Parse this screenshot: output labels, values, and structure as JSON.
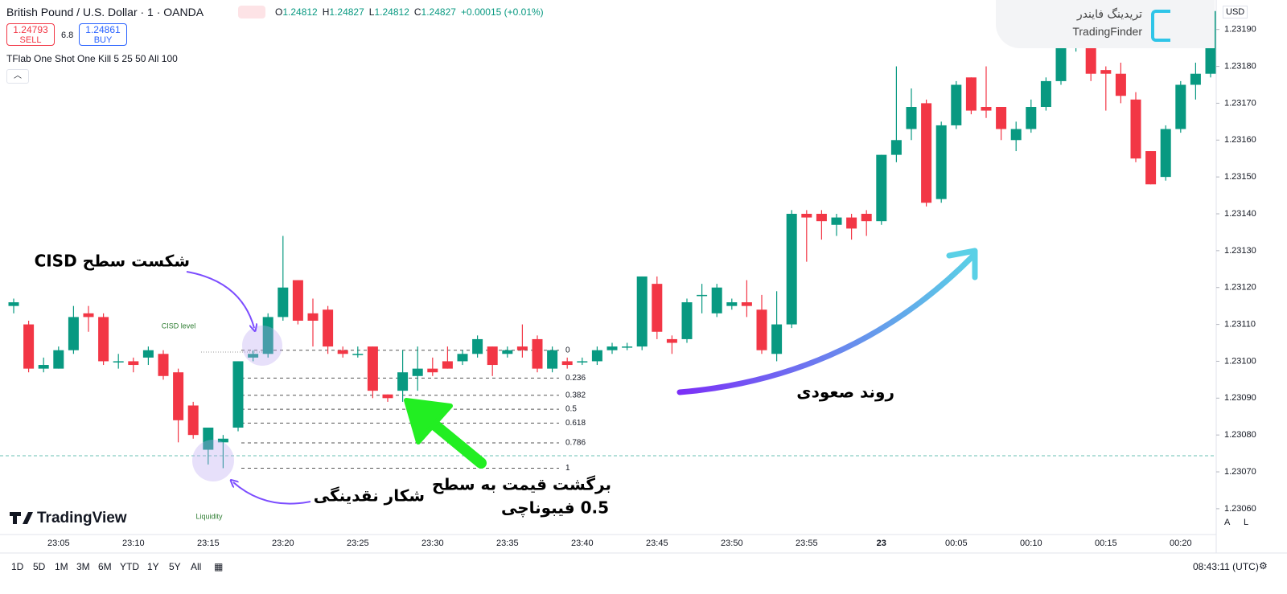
{
  "header": {
    "symbol": "British Pound / U.S. Dollar · 1 · OANDA",
    "ohlc": [
      {
        "label": "O",
        "value": "1.24812"
      },
      {
        "label": "H",
        "value": "1.24827"
      },
      {
        "label": "L",
        "value": "1.24812"
      },
      {
        "label": "C",
        "value": "1.24827"
      }
    ],
    "change": "+0.00015 (+0.01%)",
    "sell_price": "1.24793",
    "sell": "SELL",
    "spread": "6.8",
    "buy_price": "1.24861",
    "buy": "BUY",
    "indicator": "TFlab One Shot One Kill 5 25 50 All 100",
    "currency": "USD"
  },
  "logos": {
    "tradingview": "TradingView",
    "tradingfinder": "TradingFinder",
    "tradingfinder_fa": "تریدینگ فایندر"
  },
  "chart_data": {
    "type": "candlestick",
    "up_color": "#089981",
    "down_color": "#f23645",
    "categories": [
      null,
      null,
      null,
      "23:05",
      null,
      null,
      null,
      null,
      "23:10",
      null,
      null,
      null,
      null,
      "23:15",
      null,
      null,
      null,
      null,
      "23:20",
      null,
      null,
      null,
      null,
      "23:25",
      null,
      null,
      null,
      null,
      "23:30",
      null,
      null,
      null,
      null,
      "23:35",
      null,
      null,
      null,
      null,
      "23:40",
      null,
      null,
      null,
      null,
      "23:45",
      null,
      null,
      null,
      null,
      "23:50",
      null,
      null,
      null,
      null,
      "23:55",
      null,
      null,
      null,
      null,
      "23",
      null,
      null,
      null,
      null,
      "00:05",
      null,
      null,
      null,
      null,
      "00:10",
      null,
      null,
      null,
      null,
      "00:15",
      null,
      null,
      null,
      null,
      "00:20",
      null,
      null
    ],
    "open": [
      1.23115,
      1.2311,
      1.23098,
      1.23098,
      1.23103,
      1.23113,
      1.23112,
      1.231,
      1.231,
      1.23101,
      1.23102,
      1.23097,
      1.23088,
      1.23076,
      1.23078,
      1.23082,
      1.23101,
      1.23102,
      1.23112,
      1.23122,
      1.23113,
      1.23114,
      1.23103,
      1.23102,
      1.23104,
      1.23091,
      1.23092,
      1.23096,
      1.23098,
      1.231,
      1.231,
      1.23102,
      1.23104,
      1.23102,
      1.23104,
      1.23106,
      1.23098,
      1.231,
      1.231,
      1.231,
      1.23103,
      1.23104,
      1.23104,
      1.23121,
      1.23106,
      1.23106,
      1.23118,
      1.23113,
      1.23115,
      1.23116,
      1.23114,
      1.23102,
      1.2311,
      1.2314,
      1.2314,
      1.23137,
      1.23139,
      1.2314,
      1.23138,
      1.23156,
      1.23163,
      1.2317,
      1.23144,
      1.23164,
      1.23177,
      1.23169,
      1.23169,
      1.2316,
      1.23163,
      1.23169,
      1.23176,
      1.23186,
      1.23186,
      1.23179,
      1.23178,
      1.23171,
      1.23157,
      1.2315,
      1.23163,
      1.23175,
      1.23178
    ],
    "high": [
      1.23117,
      1.23111,
      1.23101,
      1.23104,
      1.23115,
      1.23115,
      1.23113,
      1.23102,
      1.23101,
      1.23104,
      1.23103,
      1.23098,
      1.23089,
      1.23082,
      1.2308,
      1.231,
      1.23103,
      1.23113,
      1.23134,
      1.23122,
      1.23117,
      1.23115,
      1.23104,
      1.23104,
      1.23104,
      1.23091,
      1.23103,
      1.23104,
      1.23101,
      1.23104,
      1.23103,
      1.23107,
      1.23104,
      1.23104,
      1.2311,
      1.23107,
      1.23104,
      1.23101,
      1.23101,
      1.23104,
      1.23105,
      1.23105,
      1.23123,
      1.23123,
      1.23107,
      1.23117,
      1.23121,
      1.23121,
      1.23117,
      1.23122,
      1.23118,
      1.23119,
      1.23141,
      1.23141,
      1.23141,
      1.2314,
      1.2314,
      1.23141,
      1.23156,
      1.2318,
      1.23174,
      1.23171,
      1.23165,
      1.23176,
      1.23177,
      1.2318,
      1.23169,
      1.23165,
      1.23171,
      1.23177,
      1.2319,
      1.23189,
      1.23188,
      1.2318,
      1.23181,
      1.23173,
      1.23157,
      1.23164,
      1.23176,
      1.23181,
      1.23196
    ],
    "low": [
      1.23113,
      1.23097,
      1.23097,
      1.23098,
      1.23102,
      1.23108,
      1.23099,
      1.23098,
      1.23097,
      1.23099,
      1.23095,
      1.23078,
      1.23079,
      1.23072,
      1.23071,
      1.23081,
      1.231,
      1.23101,
      1.23111,
      1.2311,
      1.23104,
      1.23102,
      1.23101,
      1.23101,
      1.2309,
      1.23089,
      1.23089,
      1.23092,
      1.23096,
      1.23098,
      1.23099,
      1.23101,
      1.23096,
      1.23101,
      1.23101,
      1.23097,
      1.23097,
      1.23098,
      1.23099,
      1.23099,
      1.23102,
      1.23103,
      1.23103,
      1.23106,
      1.23102,
      1.23105,
      1.23113,
      1.23112,
      1.23114,
      1.23112,
      1.23102,
      1.231,
      1.23109,
      1.23127,
      1.23133,
      1.23134,
      1.23133,
      1.23134,
      1.23137,
      1.23154,
      1.2316,
      1.23142,
      1.23143,
      1.23163,
      1.23167,
      1.23166,
      1.2316,
      1.23157,
      1.23162,
      1.23168,
      1.23175,
      1.23184,
      1.23176,
      1.23168,
      1.2317,
      1.23154,
      1.23148,
      1.23149,
      1.23162,
      1.23171,
      1.23177
    ],
    "close": [
      1.23116,
      1.23098,
      1.23099,
      1.23103,
      1.23112,
      1.23112,
      1.231,
      1.231,
      1.23099,
      1.23103,
      1.23096,
      1.23084,
      1.2308,
      1.23082,
      1.23079,
      1.231,
      1.23102,
      1.23112,
      1.2312,
      1.23111,
      1.23111,
      1.23104,
      1.23102,
      1.23102,
      1.23092,
      1.2309,
      1.23097,
      1.23098,
      1.23097,
      1.23098,
      1.23102,
      1.23106,
      1.23099,
      1.23103,
      1.23103,
      1.23098,
      1.23103,
      1.23099,
      1.231,
      1.23103,
      1.23104,
      1.23104,
      1.23123,
      1.23108,
      1.23105,
      1.23116,
      1.23118,
      1.2312,
      1.23116,
      1.23115,
      1.23103,
      1.2311,
      1.2314,
      1.23139,
      1.23138,
      1.23139,
      1.23136,
      1.23138,
      1.23156,
      1.2316,
      1.23169,
      1.23143,
      1.23164,
      1.23175,
      1.23168,
      1.23168,
      1.23163,
      1.23163,
      1.23169,
      1.23176,
      1.23186,
      1.23186,
      1.23178,
      1.23178,
      1.23172,
      1.23155,
      1.23148,
      1.23163,
      1.23175,
      1.23178,
      1.23195
    ],
    "ylim": [
      1.23053,
      1.23198
    ],
    "yticks": [
      {
        "value": 1.2306,
        "label": "1.23060"
      },
      {
        "value": 1.2307,
        "label": "1.23070"
      },
      {
        "value": 1.2308,
        "label": "1.23080"
      },
      {
        "value": 1.2309,
        "label": "1.23090"
      },
      {
        "value": 1.231,
        "label": "1.23100"
      },
      {
        "value": 1.2311,
        "label": "1.23110"
      },
      {
        "value": 1.2312,
        "label": "1.23120"
      },
      {
        "value": 1.2313,
        "label": "1.23130"
      },
      {
        "value": 1.2314,
        "label": "1.23140"
      },
      {
        "value": 1.2315,
        "label": "1.23150"
      },
      {
        "value": 1.2316,
        "label": "1.23160"
      },
      {
        "value": 1.2317,
        "label": "1.23170"
      },
      {
        "value": 1.2318,
        "label": "1.23180"
      },
      {
        "value": 1.2319,
        "label": "1.23190"
      }
    ],
    "fib_levels": [
      0,
      0.236,
      0.382,
      0.5,
      0.618,
      0.786,
      1
    ],
    "cisd_label": "CISD level",
    "liquidity_label": "Liquidity"
  },
  "annotations": {
    "cisd_break": "شکست سطح CISD",
    "liquidity_hunt": "شکار نقدینگی",
    "retrace_1": "برگشت قیمت به سطح",
    "retrace_2": "0.5 فیبوناچی",
    "uptrend": "روند صعودی"
  },
  "toolbar": {
    "ranges": [
      "1D",
      "5D",
      "1M",
      "3M",
      "6M",
      "YTD",
      "1Y",
      "5Y",
      "All"
    ],
    "clock": "08:43:11 (UTC)",
    "auto": "A",
    "log": "L"
  }
}
